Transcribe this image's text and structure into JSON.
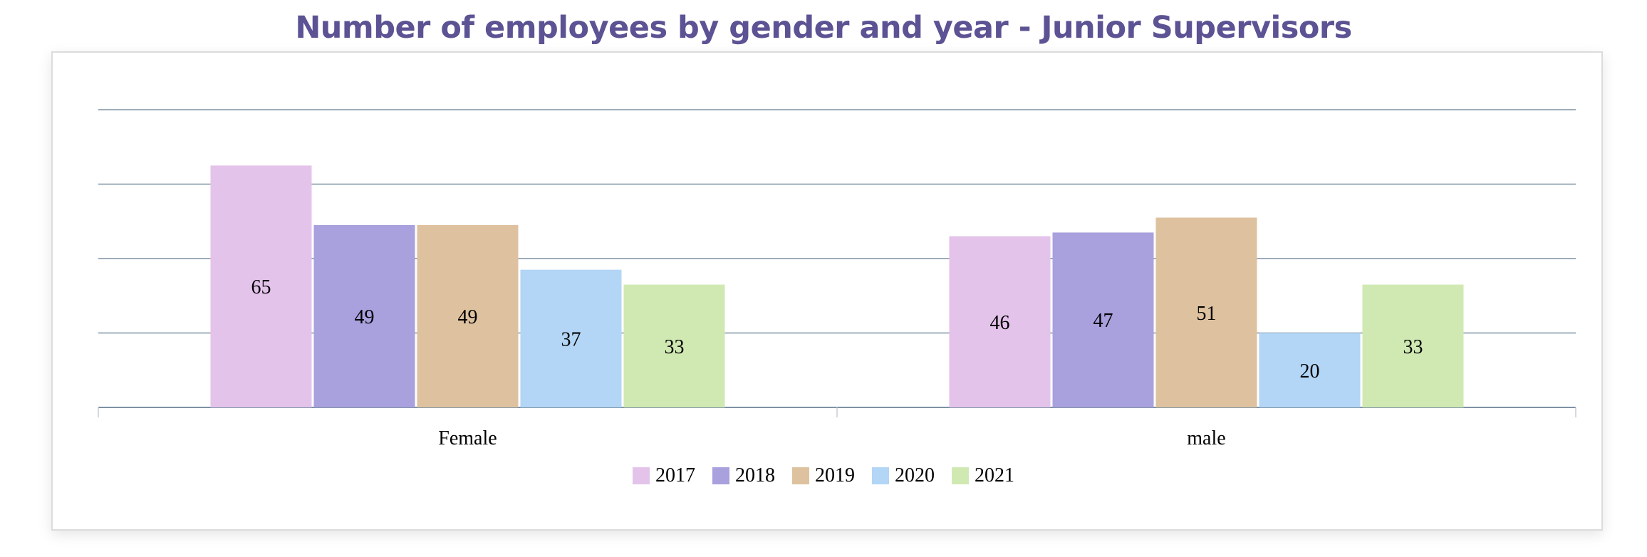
{
  "chart_data": {
    "type": "bar",
    "title": "Number of employees by gender and year - Junior Supervisors",
    "xlabel": "",
    "ylabel": "",
    "categories": [
      "Female",
      "male"
    ],
    "series": [
      {
        "name": "2017",
        "values": [
          65,
          46
        ],
        "color": "#e4c3eb"
      },
      {
        "name": "2018",
        "values": [
          49,
          47
        ],
        "color": "#a9a0de"
      },
      {
        "name": "2019",
        "values": [
          49,
          51
        ],
        "color": "#dec29f"
      },
      {
        "name": "2020",
        "values": [
          37,
          20
        ],
        "color": "#b3d5f6"
      },
      {
        "name": "2021",
        "values": [
          33,
          33
        ],
        "color": "#d0e9b3"
      }
    ],
    "ylim": [
      0,
      80
    ],
    "grid": true,
    "gridline_color": "#7d92a4",
    "legend_position": "bottom-center",
    "title_color": "#5b5393"
  }
}
